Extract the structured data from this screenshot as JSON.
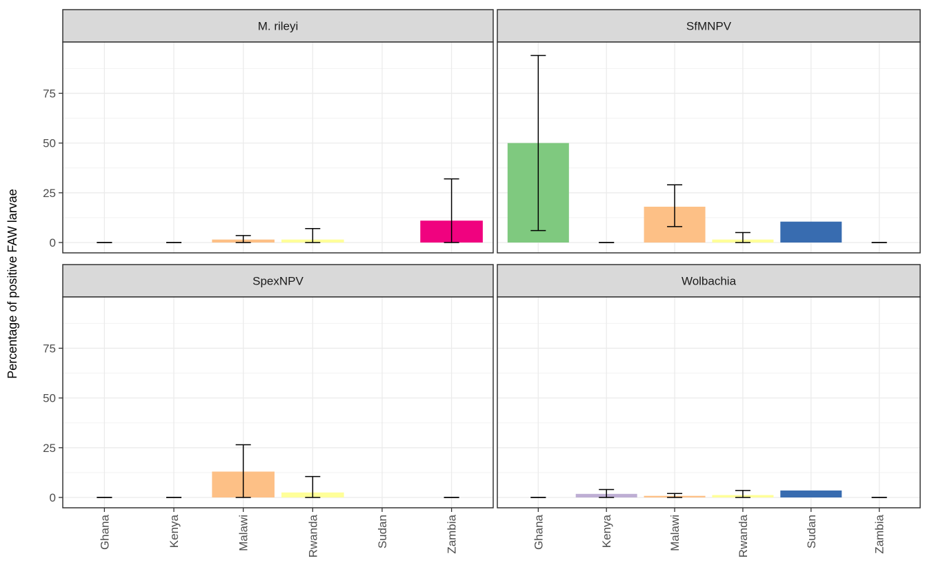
{
  "chart_data": {
    "type": "bar",
    "layout": "facet-grid-2x2",
    "ylabel": "Percentage of positive FAW larvae",
    "xlabel": "",
    "ylim": [
      0,
      98
    ],
    "yticks": [
      0,
      25,
      50,
      75
    ],
    "grid": true,
    "categories": [
      "Ghana",
      "Kenya",
      "Malawi",
      "Rwanda",
      "Sudan",
      "Zambia"
    ],
    "colors": {
      "Ghana": "#7fc97f",
      "Kenya": "#beaed4",
      "Malawi": "#fdc086",
      "Rwanda": "#ffff99",
      "Sudan": "#386cb0",
      "Zambia": "#f0027f"
    },
    "facets": [
      {
        "title": "M. rileyi",
        "values": [
          0,
          0,
          1.5,
          1.5,
          0,
          11
        ],
        "errors": [
          [
            0,
            0
          ],
          [
            0,
            0
          ],
          [
            0,
            3.5
          ],
          [
            0,
            7
          ],
          null,
          [
            0,
            32
          ]
        ]
      },
      {
        "title": "SfMNPV",
        "values": [
          50,
          0,
          18,
          1.5,
          10.5,
          0
        ],
        "errors": [
          [
            6,
            94
          ],
          [
            0,
            0
          ],
          [
            8,
            29
          ],
          [
            0,
            5
          ],
          null,
          [
            0,
            0
          ]
        ]
      },
      {
        "title": "SpexNPV",
        "values": [
          0,
          0,
          13,
          2.5,
          0,
          0
        ],
        "errors": [
          [
            0,
            0
          ],
          [
            0,
            0
          ],
          [
            0,
            26.5
          ],
          [
            0,
            10.5
          ],
          null,
          [
            0,
            0
          ]
        ]
      },
      {
        "title": "Wolbachia",
        "values": [
          0,
          1.8,
          0.8,
          1.2,
          3.5,
          0
        ],
        "errors": [
          [
            0,
            0
          ],
          [
            0,
            4
          ],
          [
            0,
            2
          ],
          [
            0,
            3.5
          ],
          null,
          [
            0,
            0
          ]
        ]
      }
    ]
  }
}
